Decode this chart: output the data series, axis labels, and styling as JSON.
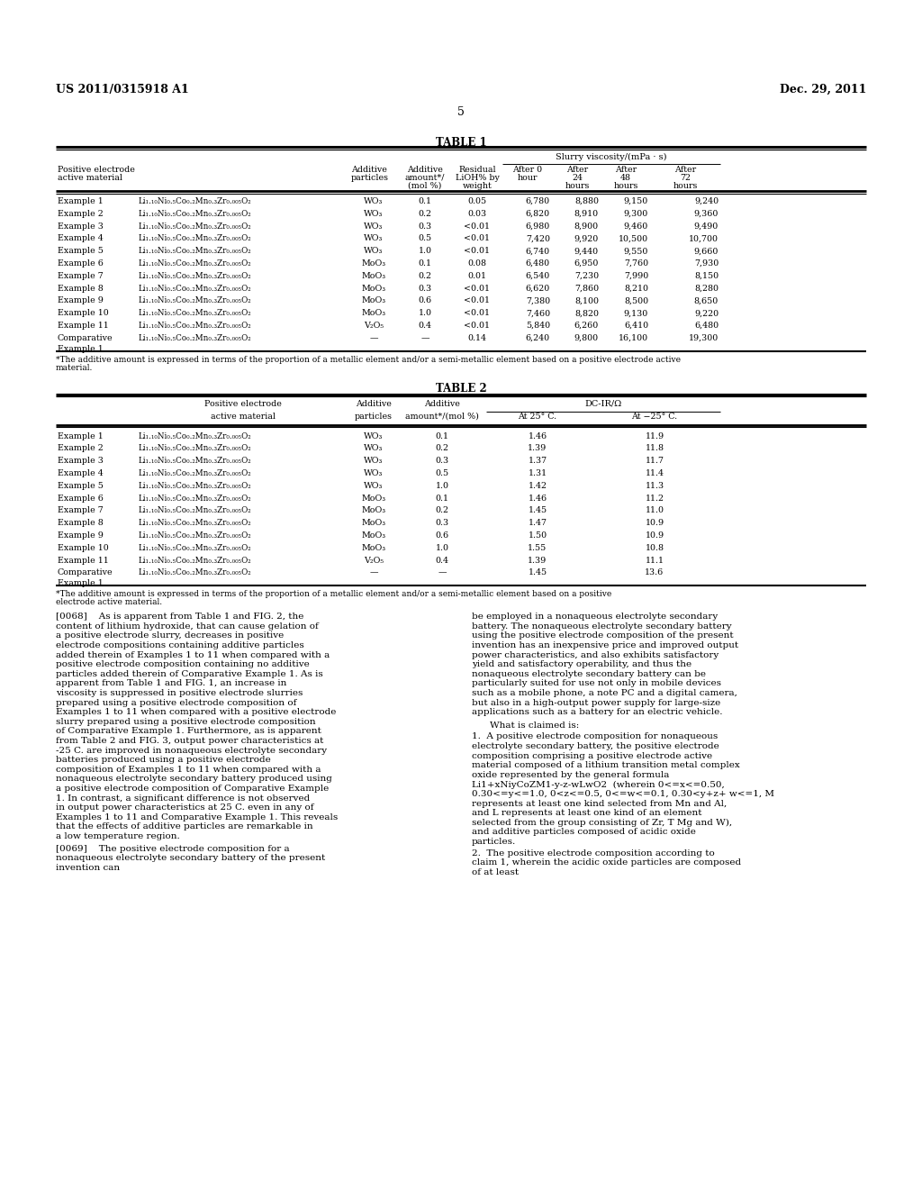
{
  "page_number": "5",
  "patent_left": "US 2011/0315918 A1",
  "patent_right": "Dec. 29, 2011",
  "table1_title": "TABLE 1",
  "table2_title": "TABLE 2",
  "table1_header_top": "Slurry viscosity/(mPa · s)",
  "table1_rows": [
    [
      "Example 1",
      "Li1.10Ni0.5Co0.2Mn0.3Zr0.005O2",
      "WO3",
      "0.1",
      "0.05",
      "6,780",
      "8,880",
      "9,150",
      "9,240"
    ],
    [
      "Example 2",
      "Li1.10Ni0.5Co0.2Mn0.3Zr0.005O2",
      "WO3",
      "0.2",
      "0.03",
      "6,820",
      "8,910",
      "9,300",
      "9,360"
    ],
    [
      "Example 3",
      "Li1.10Ni0.5Co0.2Mn0.3Zr0.005O2",
      "WO3",
      "0.3",
      "<0.01",
      "6,980",
      "8,900",
      "9,460",
      "9,490"
    ],
    [
      "Example 4",
      "Li1.10Ni0.5Co0.2Mn0.3Zr0.005O2",
      "WO3",
      "0.5",
      "<0.01",
      "7,420",
      "9,920",
      "10,500",
      "10,700"
    ],
    [
      "Example 5",
      "Li1.10Ni0.5Co0.2Mn0.3Zr0.005O2",
      "WO3",
      "1.0",
      "<0.01",
      "6,740",
      "9,440",
      "9,550",
      "9,660"
    ],
    [
      "Example 6",
      "Li1.10Ni0.5Co0.2Mn0.3Zr0.005O2",
      "MoO3",
      "0.1",
      "0.08",
      "6,480",
      "6,950",
      "7,760",
      "7,930"
    ],
    [
      "Example 7",
      "Li1.10Ni0.5Co0.2Mn0.3Zr0.005O2",
      "MoO3",
      "0.2",
      "0.01",
      "6,540",
      "7,230",
      "7,990",
      "8,150"
    ],
    [
      "Example 8",
      "Li1.10Ni0.5Co0.2Mn0.3Zr0.005O2",
      "MoO3",
      "0.3",
      "<0.01",
      "6,620",
      "7,860",
      "8,210",
      "8,280"
    ],
    [
      "Example 9",
      "Li1.10Ni0.5Co0.2Mn0.3Zr0.005O2",
      "MoO3",
      "0.6",
      "<0.01",
      "7,380",
      "8,100",
      "8,500",
      "8,650"
    ],
    [
      "Example 10",
      "Li1.10Ni0.5Co0.2Mn0.3Zr0.005O2",
      "MoO3",
      "1.0",
      "<0.01",
      "7,460",
      "8,820",
      "9,130",
      "9,220"
    ],
    [
      "Example 11",
      "Li1.10Ni0.5Co0.2Mn0.3Zr0.005O2",
      "V2O5",
      "0.4",
      "<0.01",
      "5,840",
      "6,260",
      "6,410",
      "6,480"
    ],
    [
      "Comparative",
      "Li1.10Ni0.5Co0.2Mn0.3Zr0.005O2",
      "—",
      "—",
      "0.14",
      "6,240",
      "9,800",
      "16,100",
      "19,300"
    ]
  ],
  "table1_footnote": "*The additive amount is expressed in terms of the proportion of a metallic element and/or a semi-metallic element based on a positive electrode active\nmaterial.",
  "table2_rows": [
    [
      "Example 1",
      "Li1.10Ni0.5Co0.2Mn0.3Zr0.005O2",
      "WO3",
      "0.1",
      "1.46",
      "11.9"
    ],
    [
      "Example 2",
      "Li1.10Ni0.5Co0.2Mn0.3Zr0.005O2",
      "WO3",
      "0.2",
      "1.39",
      "11.8"
    ],
    [
      "Example 3",
      "Li1.10Ni0.5Co0.2Mn0.3Zr0.005O2",
      "WO3",
      "0.3",
      "1.37",
      "11.7"
    ],
    [
      "Example 4",
      "Li1.10Ni0.5Co0.2Mn0.3Zr0.005O2",
      "WO3",
      "0.5",
      "1.31",
      "11.4"
    ],
    [
      "Example 5",
      "Li1.10Ni0.5Co0.2Mn0.3Zr0.005O2",
      "WO3",
      "1.0",
      "1.42",
      "11.3"
    ],
    [
      "Example 6",
      "Li1.10Ni0.5Co0.2Mn0.3Zr0.005O2",
      "MoO3",
      "0.1",
      "1.46",
      "11.2"
    ],
    [
      "Example 7",
      "Li1.10Ni0.5Co0.2Mn0.3Zr0.005O2",
      "MoO3",
      "0.2",
      "1.45",
      "11.0"
    ],
    [
      "Example 8",
      "Li1.10Ni0.5Co0.2Mn0.3Zr0.005O2",
      "MoO3",
      "0.3",
      "1.47",
      "10.9"
    ],
    [
      "Example 9",
      "Li1.10Ni0.5Co0.2Mn0.3Zr0.005O2",
      "MoO3",
      "0.6",
      "1.50",
      "10.9"
    ],
    [
      "Example 10",
      "Li1.10Ni0.5Co0.2Mn0.3Zr0.005O2",
      "MoO3",
      "1.0",
      "1.55",
      "10.8"
    ],
    [
      "Example 11",
      "Li1.10Ni0.5Co0.2Mn0.3Zr0.005O2",
      "V2O5",
      "0.4",
      "1.39",
      "11.1"
    ],
    [
      "Comparative",
      "Li1.10Ni0.5Co0.2Mn0.3Zr0.005O2",
      "—",
      "—",
      "1.45",
      "13.6"
    ]
  ],
  "table2_footnote": "*The additive amount is expressed in terms of the proportion of a metallic element and/or a semi-metallic element based on a positive\nelectrode active material.",
  "para_0068": "[0068]    As is apparent from Table 1 and FIG. 2, the content of lithium hydroxide, that can cause gelation of a positive electrode slurry, decreases in positive electrode compositions containing additive particles added therein of Examples 1 to 11 when compared with a positive electrode composition containing no additive particles added therein of Comparative Example 1. As is apparent from Table 1 and FIG. 1, an increase in viscosity is suppressed in positive electrode slurries prepared using a positive electrode composition of Examples 1 to 11 when compared with a positive electrode slurry prepared using a positive electrode composition of Comparative Example 1. Furthermore, as is apparent from Table 2 and FIG. 3, output power characteristics at -25 C. are improved in nonaqueous electrolyte secondary batteries produced using a positive electrode composition of Examples 1 to 11 when compared with a nonaqueous electrolyte secondary battery produced using a positive electrode composition of Comparative Example 1. In contrast, a significant difference is not observed in output power characteristics at 25 C. even in any of Examples 1 to 11 and Comparative Example 1. This reveals that the effects of additive particles are remarkable in a low temperature region.",
  "para_0069": "[0069]    The positive electrode composition for a nonaqueous electrolyte secondary battery of the present invention can",
  "para_right1": "be employed in a nonaqueous electrolyte secondary battery. The nonaqueous electrolyte secondary battery using the positive electrode composition of the present invention has an inexpensive price and improved output power characteristics, and also exhibits satisfactory yield and satisfactory operability, and thus the nonaqueous electrolyte secondary battery can be particularly suited for use not only in mobile devices such as a mobile phone, a note PC and a digital camera, but also in a high-output power supply for large-size applications such as a battery for an electric vehicle.",
  "what_is_claimed": "What is claimed is:",
  "claim1": "1.  A positive electrode composition for nonaqueous electrolyte secondary battery, the positive electrode composition comprising a positive electrode active material composed of a lithium transition metal complex oxide represented by the general formula  Li1+xNiyCoZM1-y-z-wLwO2  (wherein 0<=x<=0.50, 0.30<=y<=1.0, 0<z<=0.5, 0<=w<=0.1, 0.30<y+z+ w<=1, M represents at least one kind selected from Mn and Al, and L represents at least one kind of an element selected from the group consisting of Zr, T Mg and W), and additive particles composed of acidic oxide particles.",
  "claim2": "2.  The positive electrode composition according to claim 1, wherein the acidic oxide particles are composed of at least"
}
